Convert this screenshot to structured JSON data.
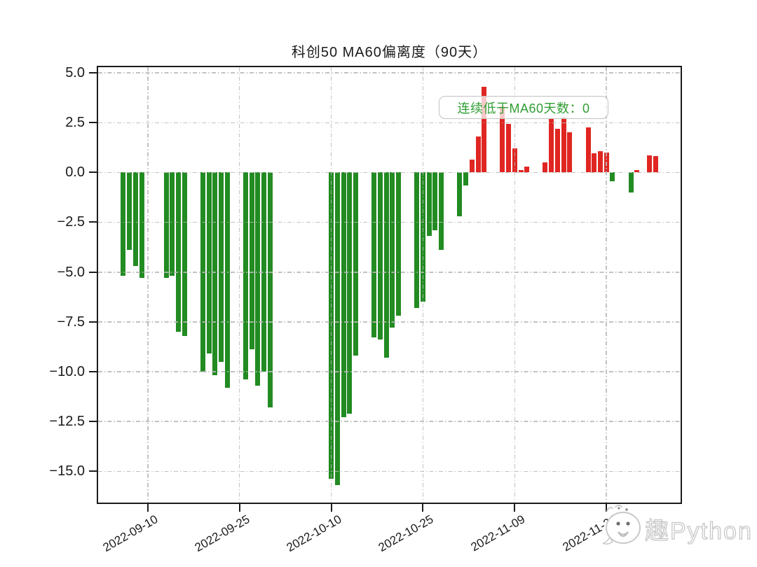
{
  "page": {
    "background": "#ffffff"
  },
  "chart_data": {
    "type": "bar",
    "title": "科创50 MA60偏离度（90天）",
    "xlabel": "",
    "ylabel": "",
    "x": [
      "2022-09-06",
      "2022-09-07",
      "2022-09-08",
      "2022-09-09",
      "2022-09-13",
      "2022-09-14",
      "2022-09-15",
      "2022-09-16",
      "2022-09-19",
      "2022-09-20",
      "2022-09-21",
      "2022-09-22",
      "2022-09-23",
      "2022-09-26",
      "2022-09-27",
      "2022-09-28",
      "2022-09-29",
      "2022-09-30",
      "2022-10-10",
      "2022-10-11",
      "2022-10-12",
      "2022-10-13",
      "2022-10-14",
      "2022-10-17",
      "2022-10-18",
      "2022-10-19",
      "2022-10-20",
      "2022-10-21",
      "2022-10-24",
      "2022-10-25",
      "2022-10-26",
      "2022-10-27",
      "2022-10-28",
      "2022-10-31",
      "2022-11-01",
      "2022-11-02",
      "2022-11-03",
      "2022-11-04",
      "2022-11-07",
      "2022-11-08",
      "2022-11-09",
      "2022-11-10",
      "2022-11-11",
      "2022-11-14",
      "2022-11-15",
      "2022-11-16",
      "2022-11-17",
      "2022-11-18",
      "2022-11-21",
      "2022-11-22",
      "2022-11-23",
      "2022-11-24",
      "2022-11-25",
      "2022-11-28",
      "2022-11-29",
      "2022-11-30",
      "2022-12-01",
      "2022-12-02"
    ],
    "values": [
      -5.2,
      -3.9,
      -4.7,
      -5.3,
      -5.3,
      -5.2,
      -8.0,
      -8.2,
      -10.0,
      -9.1,
      -10.2,
      -9.5,
      -10.8,
      -10.4,
      -8.9,
      -10.7,
      -10.0,
      -11.8,
      -15.4,
      -15.7,
      -12.3,
      -12.1,
      -9.2,
      -8.3,
      -8.4,
      -9.3,
      -7.8,
      -7.2,
      -6.8,
      -6.5,
      -3.2,
      -2.9,
      -3.9,
      -2.2,
      -0.65,
      0.65,
      1.8,
      4.3,
      3.3,
      2.45,
      1.2,
      0.12,
      0.3,
      0.5,
      2.7,
      2.2,
      2.75,
      2.0,
      2.25,
      0.95,
      1.05,
      1.0,
      -0.45,
      -1.0,
      0.1,
      0.0,
      0.85,
      0.8
    ],
    "yticks": [
      5.0,
      2.5,
      0.0,
      -2.5,
      -5.0,
      -7.5,
      -10.0,
      -12.5,
      -15.0
    ],
    "xticks": [
      "2022-09-10",
      "2022-09-25",
      "2022-10-10",
      "2022-10-25",
      "2022-11-09",
      "2022-11-24"
    ],
    "ylim": [
      -16.65,
      5.35
    ],
    "x_margin_days": 4.35,
    "grid": true,
    "legend_position": "none",
    "positive_color": "#e02622",
    "negative_color": "#228B22"
  },
  "annotation": {
    "text": "连续低于MA60天数：0",
    "color": "#2f9e33"
  },
  "watermark": {
    "text": "趣Python"
  },
  "axes": {
    "grid_color": "#b8b8b8",
    "spine_color": "#1c1c1c",
    "tick_label_color": "#1a1a1a"
  }
}
